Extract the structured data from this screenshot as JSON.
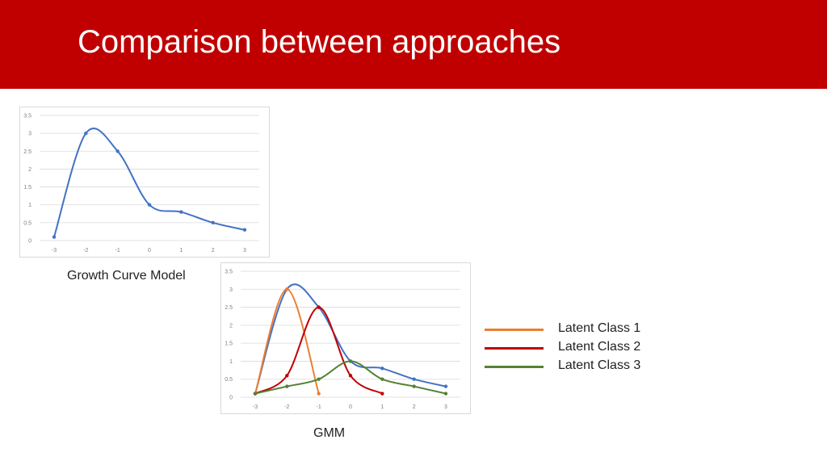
{
  "slide": {
    "title": "Comparison between approaches",
    "colors": {
      "banner": "#c00000",
      "title_text": "#ffffff"
    }
  },
  "captions": {
    "growth_curve": "Growth Curve Model",
    "gmm": "GMM"
  },
  "legend": [
    {
      "label": "Latent Class 1",
      "color": "#ed7d31"
    },
    {
      "label": "Latent Class 2",
      "color": "#c00000"
    },
    {
      "label": "Latent Class 3",
      "color": "#548235"
    }
  ],
  "chart_data": [
    {
      "type": "line",
      "title": "",
      "xlabel": "",
      "ylabel": "",
      "categories": [
        "-3",
        "-2",
        "-1",
        "0",
        "1",
        "2",
        "3"
      ],
      "yticks": [
        "0",
        "0.5",
        "1",
        "1.5",
        "2",
        "2.5",
        "3",
        "3.5"
      ],
      "ylim": [
        0,
        3.5
      ],
      "grid": true,
      "smooth": true,
      "series": [
        {
          "color": "#4472c4",
          "values": [
            0.1,
            3.0,
            2.5,
            1.0,
            0.8,
            0.5,
            0.3
          ]
        }
      ]
    },
    {
      "type": "line",
      "title": "",
      "xlabel": "",
      "ylabel": "",
      "categories": [
        "-3",
        "-2",
        "-1",
        "0",
        "1",
        "2",
        "3"
      ],
      "yticks": [
        "0",
        "0.5",
        "1",
        "1.5",
        "2",
        "2.5",
        "3",
        "3.5"
      ],
      "ylim": [
        0,
        3.5
      ],
      "grid": true,
      "smooth": true,
      "series": [
        {
          "color": "#4472c4",
          "values": [
            0.1,
            3.0,
            2.5,
            1.0,
            0.8,
            0.5,
            0.3
          ]
        },
        {
          "name": "Latent Class 1",
          "color": "#ed7d31",
          "values": [
            0.1,
            3.0,
            0.1,
            null,
            null,
            null,
            null
          ]
        },
        {
          "name": "Latent Class 2",
          "color": "#c00000",
          "values": [
            0.1,
            0.6,
            2.5,
            0.6,
            0.1,
            null,
            null
          ]
        },
        {
          "name": "Latent Class 3",
          "color": "#548235",
          "values": [
            0.1,
            0.3,
            0.5,
            1.0,
            0.5,
            0.3,
            0.1
          ]
        }
      ]
    }
  ]
}
